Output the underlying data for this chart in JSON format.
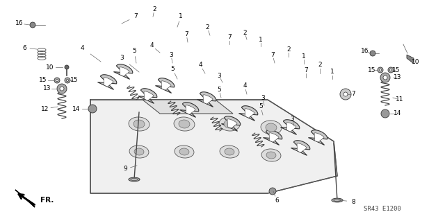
{
  "background_color": "#ffffff",
  "diagram_code": "SR43 E1200",
  "fr_label": "FR.",
  "fig_width": 6.4,
  "fig_height": 3.19,
  "dpi": 100,
  "line_color": "#333333",
  "text_color": "#000000",
  "label_fontsize": 6.5,
  "rocker_fill": "#c8c8c8",
  "rocker_ec": "#333333",
  "head_fill": "#f0f0f0",
  "head_ec": "#444444",
  "spring_color": "#444444",
  "part_fill": "#888888"
}
